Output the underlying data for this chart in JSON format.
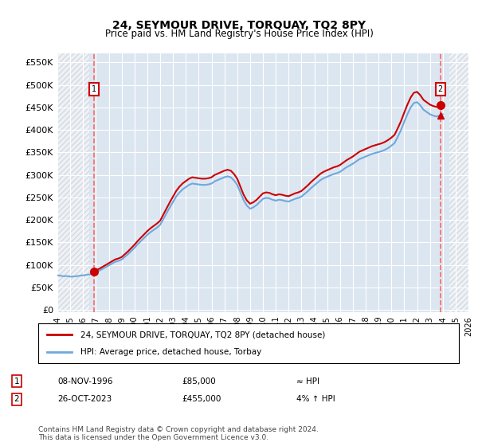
{
  "title": "24, SEYMOUR DRIVE, TORQUAY, TQ2 8PY",
  "subtitle": "Price paid vs. HM Land Registry's House Price Index (HPI)",
  "x_start": 1994,
  "x_end": 2026,
  "y_ticks": [
    0,
    50000,
    100000,
    150000,
    200000,
    250000,
    300000,
    350000,
    400000,
    450000,
    500000,
    550000
  ],
  "y_labels": [
    "£0",
    "£50K",
    "£100K",
    "£150K",
    "£200K",
    "£250K",
    "£300K",
    "£350K",
    "£400K",
    "£450K",
    "£500K",
    "£550K"
  ],
  "ylim": [
    -5000,
    570000
  ],
  "hpi_color": "#6fa8dc",
  "price_color": "#cc0000",
  "dashed_line_color": "#ff6666",
  "annotation_box_color": "#cc0000",
  "background_color": "#dce6f1",
  "outer_background": "#ffffff",
  "hatch_color": "#c0c8d8",
  "sale1_year": 1996.86,
  "sale1_price": 85000,
  "sale2_year": 2023.82,
  "sale2_price": 455000,
  "legend_label1": "24, SEYMOUR DRIVE, TORQUAY, TQ2 8PY (detached house)",
  "legend_label2": "HPI: Average price, detached house, Torbay",
  "table_row1": [
    "1",
    "08-NOV-1996",
    "£85,000",
    "≈ HPI"
  ],
  "table_row2": [
    "2",
    "26-OCT-2023",
    "£455,000",
    "4% ↑ HPI"
  ],
  "footer": "Contains HM Land Registry data © Crown copyright and database right 2024.\nThis data is licensed under the Open Government Licence v3.0.",
  "hpi_data_x": [
    1994.0,
    1994.25,
    1994.5,
    1994.75,
    1995.0,
    1995.25,
    1995.5,
    1995.75,
    1996.0,
    1996.25,
    1996.5,
    1996.75,
    1997.0,
    1997.25,
    1997.5,
    1997.75,
    1998.0,
    1998.25,
    1998.5,
    1998.75,
    1999.0,
    1999.25,
    1999.5,
    1999.75,
    2000.0,
    2000.25,
    2000.5,
    2000.75,
    2001.0,
    2001.25,
    2001.5,
    2001.75,
    2002.0,
    2002.25,
    2002.5,
    2002.75,
    2003.0,
    2003.25,
    2003.5,
    2003.75,
    2004.0,
    2004.25,
    2004.5,
    2004.75,
    2005.0,
    2005.25,
    2005.5,
    2005.75,
    2006.0,
    2006.25,
    2006.5,
    2006.75,
    2007.0,
    2007.25,
    2007.5,
    2007.75,
    2008.0,
    2008.25,
    2008.5,
    2008.75,
    2009.0,
    2009.25,
    2009.5,
    2009.75,
    2010.0,
    2010.25,
    2010.5,
    2010.75,
    2011.0,
    2011.25,
    2011.5,
    2011.75,
    2012.0,
    2012.25,
    2012.5,
    2012.75,
    2013.0,
    2013.25,
    2013.5,
    2013.75,
    2014.0,
    2014.25,
    2014.5,
    2014.75,
    2015.0,
    2015.25,
    2015.5,
    2015.75,
    2016.0,
    2016.25,
    2016.5,
    2016.75,
    2017.0,
    2017.25,
    2017.5,
    2017.75,
    2018.0,
    2018.25,
    2018.5,
    2018.75,
    2019.0,
    2019.25,
    2019.5,
    2019.75,
    2020.0,
    2020.25,
    2020.5,
    2020.75,
    2021.0,
    2021.25,
    2021.5,
    2021.75,
    2022.0,
    2022.25,
    2022.5,
    2022.75,
    2023.0,
    2023.25,
    2023.5,
    2023.75,
    2024.0
  ],
  "hpi_data_y": [
    77000,
    76000,
    75000,
    75500,
    74000,
    74500,
    75000,
    76000,
    77000,
    78000,
    79000,
    81000,
    84000,
    87000,
    91000,
    95000,
    99000,
    103000,
    107000,
    109000,
    112000,
    118000,
    124000,
    131000,
    138000,
    146000,
    153000,
    160000,
    167000,
    173000,
    178000,
    183000,
    189000,
    202000,
    215000,
    228000,
    240000,
    252000,
    261000,
    268000,
    273000,
    278000,
    281000,
    280000,
    279000,
    278000,
    278000,
    279000,
    281000,
    286000,
    289000,
    292000,
    295000,
    297000,
    295000,
    288000,
    278000,
    261000,
    244000,
    232000,
    225000,
    228000,
    233000,
    240000,
    247000,
    249000,
    248000,
    245000,
    243000,
    245000,
    244000,
    242000,
    241000,
    244000,
    247000,
    249000,
    252000,
    258000,
    264000,
    271000,
    277000,
    283000,
    289000,
    293000,
    296000,
    299000,
    302000,
    304000,
    307000,
    312000,
    317000,
    321000,
    325000,
    330000,
    335000,
    338000,
    341000,
    344000,
    347000,
    349000,
    351000,
    353000,
    356000,
    360000,
    365000,
    371000,
    385000,
    400000,
    418000,
    435000,
    450000,
    460000,
    462000,
    455000,
    445000,
    440000,
    435000,
    432000,
    430000,
    432000,
    435000
  ],
  "x_tick_years": [
    1994,
    1995,
    1996,
    1997,
    1998,
    1999,
    2000,
    2001,
    2002,
    2003,
    2004,
    2005,
    2006,
    2007,
    2008,
    2009,
    2010,
    2011,
    2012,
    2013,
    2014,
    2015,
    2016,
    2017,
    2018,
    2019,
    2020,
    2021,
    2022,
    2023,
    2024,
    2025,
    2026
  ]
}
